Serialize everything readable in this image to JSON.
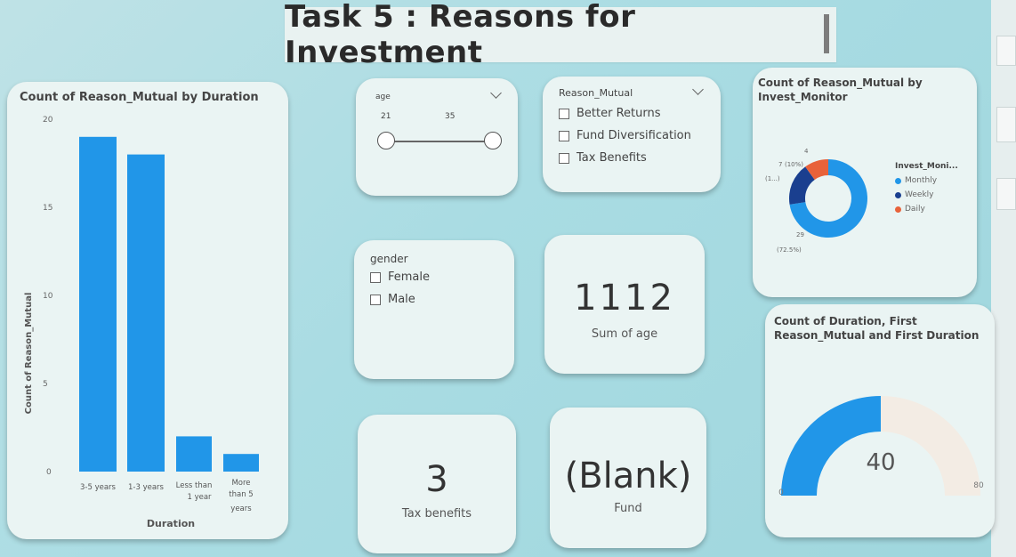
{
  "title": "Task 5 : Reasons for Investment",
  "bar_chart": {
    "title": "Count of Reason_Mutual by Duration",
    "ylabel": "Count of Reason_Mutual",
    "xlabel": "Duration",
    "ticks": [
      "0",
      "5",
      "10",
      "15",
      "20"
    ],
    "categories": [
      {
        "l1": "3-5 years",
        "l2": "",
        "l3": ""
      },
      {
        "l1": "1-3 years",
        "l2": "",
        "l3": ""
      },
      {
        "l1": "Less than",
        "l2": "1 year",
        "l3": ""
      },
      {
        "l1": "More",
        "l2": "than 5",
        "l3": "years"
      }
    ],
    "color": "#2196e8"
  },
  "chart_data": {
    "type": "bar",
    "categories": [
      "3-5 years",
      "1-3 years",
      "Less than 1 year",
      "More than 5 years"
    ],
    "values": [
      19,
      18,
      2,
      1
    ],
    "title": "Count of Reason_Mutual by Duration",
    "xlabel": "Duration",
    "ylabel": "Count of Reason_Mutual",
    "ylim": [
      0,
      20
    ]
  },
  "age_slicer": {
    "label": "age",
    "min": "21",
    "max": "35"
  },
  "reason_slicer": {
    "label": "Reason_Mutual",
    "options": [
      "Better Returns",
      "Fund Diversification",
      "Tax Benefits"
    ]
  },
  "gender_slicer": {
    "label": "gender",
    "options": [
      "Female",
      "Male"
    ]
  },
  "kpi_age": {
    "value": "1112",
    "label": "Sum of age"
  },
  "kpi_tax": {
    "value": "3",
    "label": "Tax benefits"
  },
  "kpi_fund": {
    "value": "(Blank)",
    "label": "Fund"
  },
  "donut": {
    "title_l1": "Count of Reason_Mutual by",
    "title_l2": "Invest_Monitor",
    "legend_title": "Invest_Moni...",
    "segments": [
      {
        "name": "Monthly",
        "value": 29,
        "color": "#2196e8"
      },
      {
        "name": "Weekly",
        "value": 7,
        "color": "#1a3f8f"
      },
      {
        "name": "Daily",
        "value": 4,
        "color": "#e8623a"
      }
    ],
    "labels": {
      "daily_count": "4",
      "weekly_count": "7",
      "weekly_pct": "(10%)",
      "weekly_extra": "(1...)",
      "monthly_count": "29",
      "monthly_pct": "(72.5%)"
    }
  },
  "gauge": {
    "title_l1": "Count of Duration, First",
    "title_l2": "Reason_Mutual and First Duration",
    "value": 40,
    "max": 80,
    "value_label": "40",
    "min_label": "0",
    "max_label": "80",
    "fill_color": "#2196e8",
    "track_color": "#f3ece4"
  }
}
